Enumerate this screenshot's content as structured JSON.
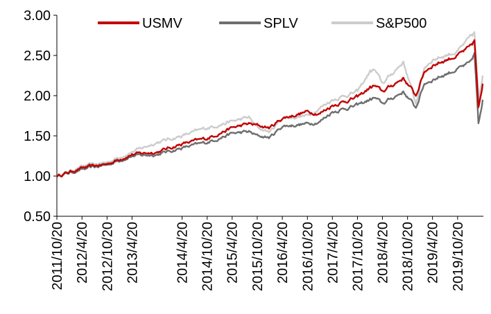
{
  "chart_data": {
    "type": "line",
    "title": "",
    "xlabel": "",
    "ylabel": "",
    "ylim": [
      0.5,
      3.0
    ],
    "y_ticks": [
      "0.50",
      "1.00",
      "1.50",
      "2.00",
      "2.50",
      "3.00"
    ],
    "x_tick_labels": [
      "2011/10/20",
      "2012/4/20",
      "2012/10/20",
      "2013/4/20",
      "2014/4/20",
      "2014/10/20",
      "2015/4/20",
      "2015/10/20",
      "2016/4/20",
      "2016/10/20",
      "2017/4/20",
      "2017/10/20",
      "2018/4/20",
      "2018/10/20",
      "2019/4/20",
      "2019/10/20"
    ],
    "x": [
      "2011/10/20",
      "2012/4/20",
      "2012/10/20",
      "2013/4/20",
      "2013/10/20",
      "2014/4/20",
      "2014/10/20",
      "2015/4/20",
      "2015/8/20",
      "2015/10/20",
      "2016/1/20",
      "2016/4/20",
      "2016/10/20",
      "2017/1/20",
      "2017/4/20",
      "2017/10/20",
      "2018/1/20",
      "2018/2/20",
      "2018/4/20",
      "2018/9/20",
      "2018/12/20",
      "2019/2/20",
      "2019/4/20",
      "2019/10/20",
      "2020/1/20",
      "2020/2/20",
      "2020/3/20",
      "2020/4/20"
    ],
    "legend_position": "top",
    "grid": false,
    "series": [
      {
        "name": "USMV",
        "color": "#c00000",
        "values": [
          1.0,
          1.1,
          1.15,
          1.27,
          1.3,
          1.4,
          1.47,
          1.6,
          1.65,
          1.63,
          1.6,
          1.72,
          1.8,
          1.78,
          1.88,
          1.98,
          2.1,
          2.12,
          2.05,
          2.22,
          2.0,
          2.3,
          2.38,
          2.5,
          2.6,
          2.68,
          1.85,
          2.15
        ]
      },
      {
        "name": "SPLV",
        "color": "#6e6e6e",
        "values": [
          1.0,
          1.08,
          1.14,
          1.25,
          1.27,
          1.35,
          1.42,
          1.53,
          1.55,
          1.5,
          1.48,
          1.62,
          1.65,
          1.68,
          1.8,
          1.88,
          1.95,
          1.97,
          1.9,
          2.05,
          1.85,
          2.15,
          2.2,
          2.33,
          2.4,
          2.52,
          1.65,
          1.95
        ]
      },
      {
        "name": "S&P500",
        "color": "#cccccc",
        "values": [
          1.0,
          1.12,
          1.17,
          1.3,
          1.42,
          1.5,
          1.6,
          1.68,
          1.73,
          1.6,
          1.55,
          1.72,
          1.75,
          1.85,
          1.95,
          2.05,
          2.3,
          2.32,
          2.15,
          2.42,
          1.9,
          2.35,
          2.45,
          2.55,
          2.72,
          2.78,
          1.95,
          2.25
        ]
      }
    ]
  }
}
